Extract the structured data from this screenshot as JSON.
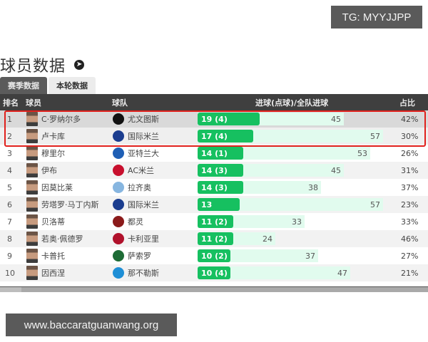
{
  "watermark_top": "TG: MYYJJPP",
  "watermark_bottom": "www.baccaratguanwang.org",
  "page": {
    "title": "球员数据",
    "title_icon": "circle-arrow-right-icon"
  },
  "tabs": [
    {
      "label": "赛季数据",
      "active": true
    },
    {
      "label": "本轮数据",
      "active": false
    }
  ],
  "table": {
    "headers": {
      "rank": "排名",
      "player": "球员",
      "team": "球队",
      "goals": "进球(点球)/全队进球",
      "ratio": "占比"
    },
    "rows": [
      {
        "rank": "1",
        "player": "C·罗纳尔多",
        "team": "尤文图斯",
        "goals_label": "19 (4)",
        "goals": 19,
        "team_goals": 45,
        "ratio": "42%",
        "crest_color": "#111111"
      },
      {
        "rank": "2",
        "player": "卢卡库",
        "team": "国际米兰",
        "goals_label": "17 (4)",
        "goals": 17,
        "team_goals": 57,
        "ratio": "30%",
        "crest_color": "#1b3d8f"
      },
      {
        "rank": "3",
        "player": "穆里尔",
        "team": "亚特兰大",
        "goals_label": "14 (1)",
        "goals": 14,
        "team_goals": 53,
        "ratio": "26%",
        "crest_color": "#1f5fb5"
      },
      {
        "rank": "4",
        "player": "伊布",
        "team": "AC米兰",
        "goals_label": "14 (3)",
        "goals": 14,
        "team_goals": 45,
        "ratio": "31%",
        "crest_color": "#c8102e"
      },
      {
        "rank": "5",
        "player": "因莫比莱",
        "team": "拉齐奥",
        "goals_label": "14 (3)",
        "goals": 14,
        "team_goals": 38,
        "ratio": "37%",
        "crest_color": "#87b6e0"
      },
      {
        "rank": "6",
        "player": "劳塔罗·马丁内斯",
        "team": "国际米兰",
        "goals_label": "13",
        "goals": 13,
        "team_goals": 57,
        "ratio": "23%",
        "crest_color": "#1b3d8f"
      },
      {
        "rank": "7",
        "player": "贝洛蒂",
        "team": "都灵",
        "goals_label": "11 (2)",
        "goals": 11,
        "team_goals": 33,
        "ratio": "33%",
        "crest_color": "#8b1a1a"
      },
      {
        "rank": "8",
        "player": "若奥·佩德罗",
        "team": "卡利亚里",
        "goals_label": "11 (2)",
        "goals": 11,
        "team_goals": 24,
        "ratio": "46%",
        "crest_color": "#b0112b"
      },
      {
        "rank": "9",
        "player": "卡普托",
        "team": "萨索罗",
        "goals_label": "10 (2)",
        "goals": 10,
        "team_goals": 37,
        "ratio": "27%",
        "crest_color": "#1d6b35"
      },
      {
        "rank": "10",
        "player": "因西涅",
        "team": "那不勒斯",
        "goals_label": "10 (4)",
        "goals": 10,
        "team_goals": 47,
        "ratio": "21%",
        "crest_color": "#1f8fd6"
      }
    ]
  },
  "colors": {
    "header_bg": "#3f3f3f",
    "goal_bar": "#16c060",
    "team_goal_bar": "#e1fbee",
    "highlight_border": "#e0201c"
  }
}
